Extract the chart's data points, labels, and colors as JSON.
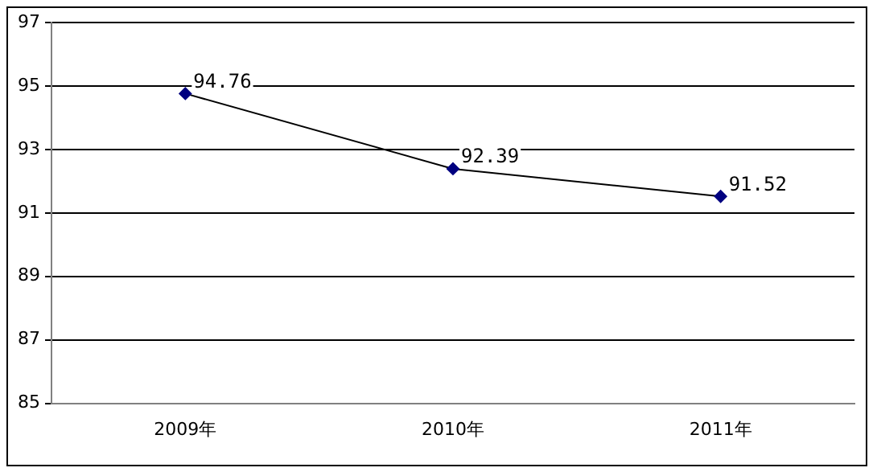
{
  "chart_data": {
    "type": "line",
    "categories": [
      "2009年",
      "2010年",
      "2011年"
    ],
    "series": [
      {
        "color": "#000080",
        "values": [
          94.76,
          92.39,
          91.52
        ]
      }
    ],
    "ylim": [
      85,
      97
    ],
    "yticks": [
      85,
      87,
      89,
      91,
      93,
      95,
      97
    ],
    "grid": "y",
    "marker": "diamond",
    "line_style": "solid",
    "data_labels": true,
    "legend": false
  }
}
